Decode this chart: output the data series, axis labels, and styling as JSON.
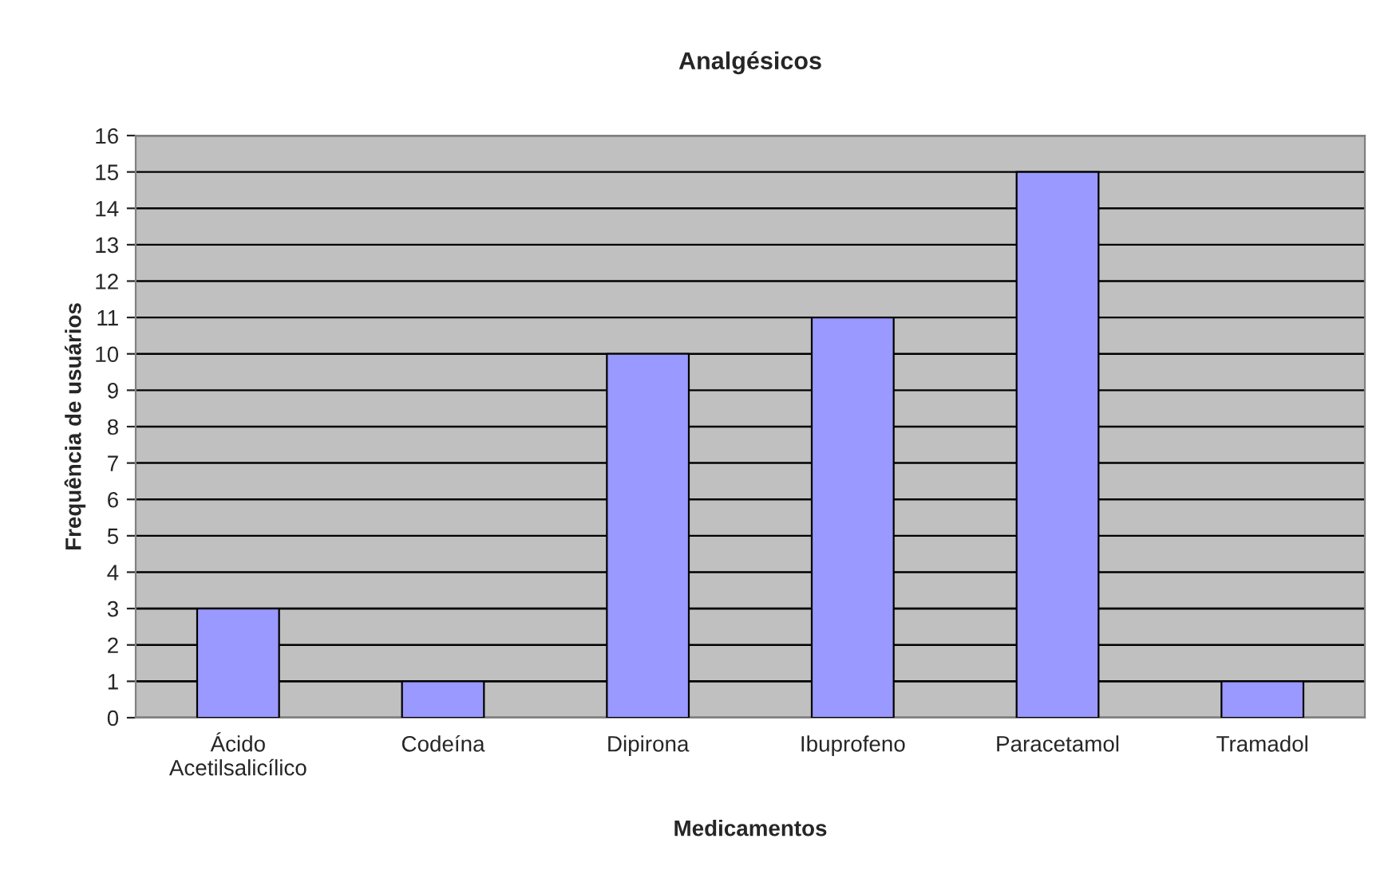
{
  "chart_data": {
    "type": "bar",
    "title": "Analgésicos",
    "xlabel": "Medicamentos",
    "ylabel": "Frequência de usuários",
    "categories": [
      "Ácido\nAcetilsalicílico",
      "Codeína",
      "Dipirona",
      "Ibuprofeno",
      "Paracetamol",
      "Tramadol"
    ],
    "values": [
      3,
      1,
      10,
      11,
      15,
      1
    ],
    "color": "#9999ff",
    "ylim": [
      0,
      16
    ],
    "yticks": [
      0,
      1,
      2,
      3,
      4,
      5,
      6,
      7,
      8,
      9,
      10,
      11,
      12,
      13,
      14,
      15,
      16
    ],
    "grid": "y",
    "legend": false
  }
}
